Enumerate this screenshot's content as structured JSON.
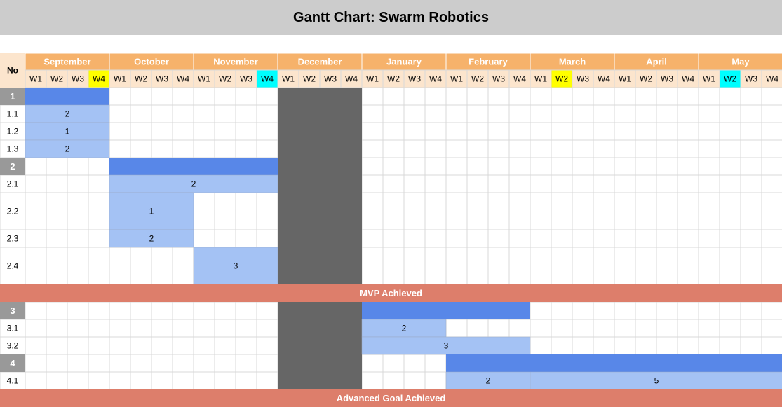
{
  "title": "Gantt Chart: Swarm Robotics",
  "header": {
    "no_label": "No",
    "week_labels": [
      "W1",
      "W2",
      "W3",
      "W4"
    ]
  },
  "months": [
    "September",
    "October",
    "November",
    "December",
    "January",
    "February",
    "March",
    "April",
    "May"
  ],
  "highlight_weeks": [
    {
      "month": "September",
      "week": "W4",
      "color": "#ffff00"
    },
    {
      "month": "November",
      "week": "W4",
      "color": "#00ffff"
    },
    {
      "month": "March",
      "week": "W2",
      "color": "#ffff00"
    },
    {
      "month": "May",
      "week": "W2",
      "color": "#00ffff"
    }
  ],
  "blackout": {
    "month": "December",
    "label": ""
  },
  "colors": {
    "title_bg": "#cccccc",
    "month_bg": "#f6b26b",
    "week_bg": "#fce5cd",
    "phase_bg": "#999999",
    "phase_bar": "#5887e8",
    "task_bar": "#a4c2f4",
    "milestone_bg": "#dd7e6b",
    "blackout": "#666666",
    "grid": "#d9d9d9"
  },
  "chart_data": {
    "type": "gantt",
    "title": "Gantt Chart: Swarm Robotics",
    "time_unit": "week",
    "rows": [
      {
        "kind": "phase",
        "no": "1",
        "start": "September W1",
        "end": "September W4"
      },
      {
        "kind": "task",
        "no": "1.1",
        "start": "September W1",
        "end": "September W4",
        "bars": [
          {
            "label": "2",
            "start": "September W1",
            "end": "September W4"
          }
        ]
      },
      {
        "kind": "task",
        "no": "1.2",
        "start": "September W1",
        "end": "September W4",
        "bars": [
          {
            "label": "1",
            "start": "September W1",
            "end": "September W4"
          }
        ]
      },
      {
        "kind": "task",
        "no": "1.3",
        "start": "September W1",
        "end": "September W4",
        "bars": [
          {
            "label": "2",
            "start": "September W1",
            "end": "September W4"
          }
        ]
      },
      {
        "kind": "phase",
        "no": "2",
        "start": "October W1",
        "end": "November W4"
      },
      {
        "kind": "task",
        "no": "2.1",
        "bars": [
          {
            "label": "2",
            "start": "October W1",
            "end": "November W4"
          }
        ]
      },
      {
        "kind": "task",
        "no": "2.2",
        "tall": true,
        "bars": [
          {
            "label": "1",
            "start": "October W1",
            "end": "October W4"
          }
        ]
      },
      {
        "kind": "task",
        "no": "2.3",
        "bars": [
          {
            "label": "2",
            "start": "October W1",
            "end": "October W4"
          }
        ]
      },
      {
        "kind": "task",
        "no": "2.4",
        "tall": true,
        "bars": [
          {
            "label": "3",
            "start": "November W1",
            "end": "November W4"
          }
        ]
      },
      {
        "kind": "milestone",
        "label": "MVP Achieved"
      },
      {
        "kind": "phase",
        "no": "3",
        "start": "January W1",
        "end": "February W4"
      },
      {
        "kind": "task",
        "no": "3.1",
        "bars": [
          {
            "label": "2",
            "start": "January W1",
            "end": "January W4"
          }
        ]
      },
      {
        "kind": "task",
        "no": "3.2",
        "bars": [
          {
            "label": "3",
            "start": "January W1",
            "end": "February W4"
          }
        ]
      },
      {
        "kind": "phase",
        "no": "4",
        "start": "February W1",
        "end": "May W4"
      },
      {
        "kind": "task",
        "no": "4.1",
        "bars": [
          {
            "label": "2",
            "start": "February W1",
            "end": "February W4"
          },
          {
            "label": "5",
            "start": "March W1",
            "end": "May W4"
          }
        ]
      },
      {
        "kind": "milestone",
        "label": "Advanced Goal Achieved"
      }
    ]
  }
}
